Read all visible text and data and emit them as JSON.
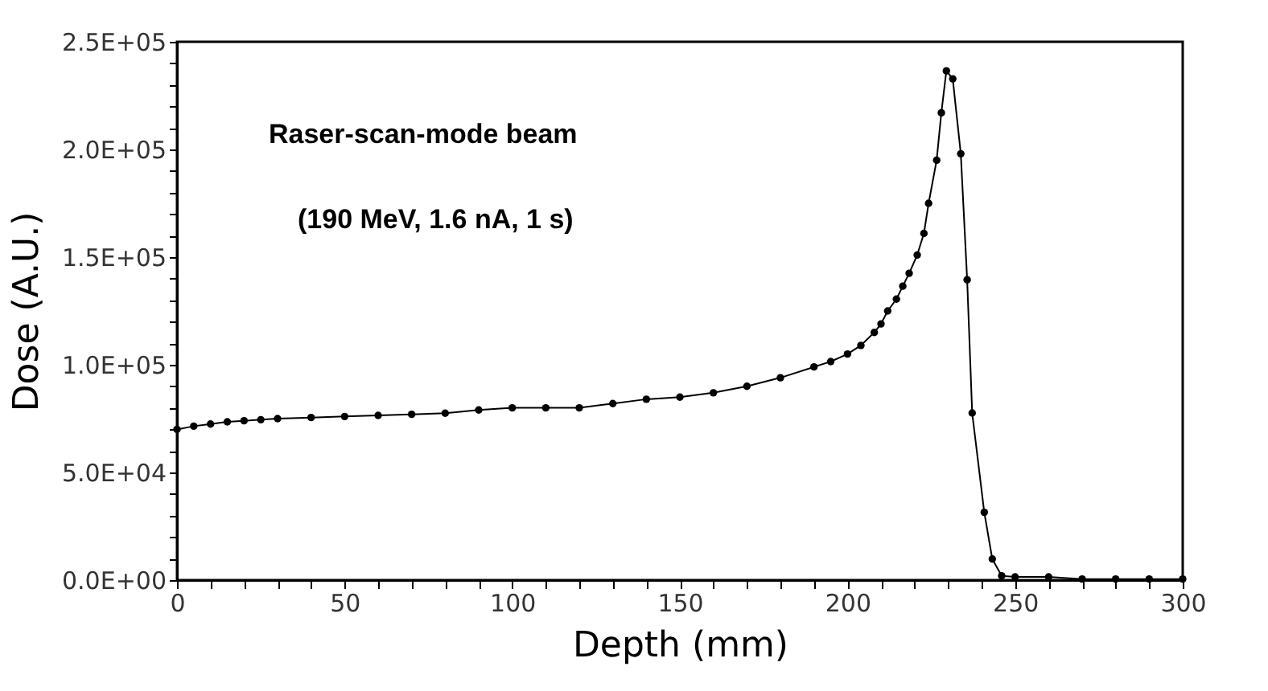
{
  "chart_data": {
    "type": "line",
    "xlabel": "Depth (mm)",
    "ylabel": "Dose (A.U.)",
    "annotations": [
      "Raser-scan-mode beam",
      "(190 MeV, 1.6 nA, 1 s)"
    ],
    "x": [
      0,
      5,
      10,
      15,
      20,
      25,
      30,
      40,
      50,
      60,
      70,
      80,
      90,
      100,
      110,
      120,
      130,
      140,
      150,
      160,
      170,
      180,
      190,
      195,
      200,
      204,
      208,
      210,
      212,
      214.6,
      216.5,
      218.4,
      220.8,
      222.8,
      224.2,
      226.6,
      228,
      229.5,
      231.4,
      233.8,
      235.7,
      237.2,
      240.8,
      243.2,
      246,
      250,
      260,
      270,
      280,
      290,
      300
    ],
    "series": [
      {
        "color": "#000000",
        "values": [
          70000,
          71500,
          72500,
          73500,
          74000,
          74500,
          75000,
          75500,
          76000,
          76500,
          77000,
          77500,
          79000,
          80000,
          80000,
          80000,
          82000,
          84000,
          85000,
          87000,
          90000,
          94000,
          99000,
          101500,
          105000,
          109000,
          115000,
          119000,
          125000,
          130500,
          136500,
          142500,
          151000,
          161000,
          175000,
          195000,
          217000,
          236500,
          232800,
          198000,
          139500,
          77600,
          31500,
          9800,
          2000,
          1500,
          1500,
          500,
          500,
          500,
          500
        ]
      }
    ],
    "xlim": [
      0,
      300
    ],
    "ylim": [
      0,
      250000
    ],
    "xticks": [
      0,
      {
        "value": 10,
        "label": null
      },
      {
        "value": 20,
        "label": null
      },
      {
        "value": 30,
        "label": null
      },
      {
        "value": 40,
        "label": null
      },
      50,
      {
        "value": 60,
        "label": null
      },
      {
        "value": 70,
        "label": null
      },
      {
        "value": 80,
        "label": null
      },
      {
        "value": 90,
        "label": null
      },
      100,
      {
        "value": 110,
        "label": null
      },
      {
        "value": 120,
        "label": null
      },
      {
        "value": 130,
        "label": null
      },
      {
        "value": 140,
        "label": null
      },
      150,
      {
        "value": 160,
        "label": null
      },
      {
        "value": 170,
        "label": null
      },
      {
        "value": 180,
        "label": null
      },
      {
        "value": 190,
        "label": null
      },
      200,
      {
        "value": 210,
        "label": null
      },
      {
        "value": 220,
        "label": null
      },
      {
        "value": 230,
        "label": null
      },
      {
        "value": 240,
        "label": null
      },
      250,
      {
        "value": 260,
        "label": null
      },
      {
        "value": 270,
        "label": null
      },
      {
        "value": 280,
        "label": null
      },
      {
        "value": 290,
        "label": null
      },
      300
    ],
    "yticks": [
      {
        "value": 0,
        "label": "0.0E+00"
      },
      {
        "value": 10000,
        "label": null
      },
      {
        "value": 20000,
        "label": null
      },
      {
        "value": 30000,
        "label": null
      },
      {
        "value": 40000,
        "label": null
      },
      {
        "value": 50000,
        "label": "5.0E+04"
      },
      {
        "value": 60000,
        "label": null
      },
      {
        "value": 70000,
        "label": null
      },
      {
        "value": 80000,
        "label": null
      },
      {
        "value": 90000,
        "label": null
      },
      {
        "value": 100000,
        "label": "1.0E+05"
      },
      {
        "value": 110000,
        "label": null
      },
      {
        "value": 120000,
        "label": null
      },
      {
        "value": 130000,
        "label": null
      },
      {
        "value": 140000,
        "label": null
      },
      {
        "value": 150000,
        "label": "1.5E+05"
      },
      {
        "value": 160000,
        "label": null
      },
      {
        "value": 170000,
        "label": null
      },
      {
        "value": 180000,
        "label": null
      },
      {
        "value": 190000,
        "label": null
      },
      {
        "value": 200000,
        "label": "2.0E+05"
      },
      {
        "value": 210000,
        "label": null
      },
      {
        "value": 220000,
        "label": null
      },
      {
        "value": 230000,
        "label": null
      },
      {
        "value": 240000,
        "label": null
      },
      {
        "value": 250000,
        "label": "2.5E+05"
      }
    ],
    "grid": false,
    "legend": false,
    "marker": "circle",
    "line_style": "solid"
  }
}
